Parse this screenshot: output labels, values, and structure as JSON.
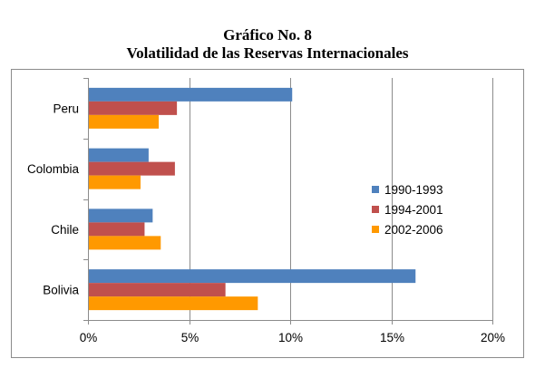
{
  "header": {
    "title_line1": "Gráfico No. 8",
    "title_line2": "Volatilidad de las Reservas Internacionales"
  },
  "chart_data": {
    "type": "bar",
    "orientation": "horizontal",
    "title": "Gráfico No. 8 Volatilidad de las Reservas Internacionales",
    "categories": [
      "Peru",
      "Colombia",
      "Chile",
      "Bolivia"
    ],
    "series": [
      {
        "name": "1990-1993",
        "color": "#4F81BD",
        "values": [
          10.1,
          3.0,
          3.2,
          16.2
        ]
      },
      {
        "name": "1994-2001",
        "color": "#C0504D",
        "values": [
          4.4,
          4.3,
          2.8,
          6.8
        ]
      },
      {
        "name": "2002-2006",
        "color": "#FF9900",
        "values": [
          3.5,
          2.6,
          3.6,
          8.4
        ]
      }
    ],
    "x_ticks": [
      "0%",
      "5%",
      "10%",
      "15%",
      "20%"
    ],
    "xlim": [
      0,
      20
    ],
    "x_unit": "%",
    "grid": true,
    "legend_position": "right"
  }
}
